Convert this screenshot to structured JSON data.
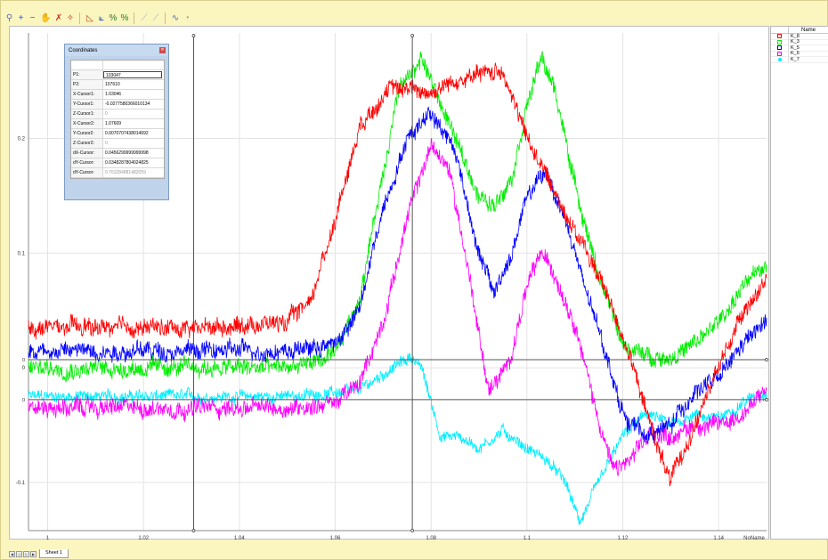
{
  "toolbar": {
    "buttons": [
      {
        "name": "select-tool-icon",
        "glyph": "⚲",
        "color": "#6070a0"
      },
      {
        "name": "add-cursor-icon",
        "glyph": "+",
        "color": "#2060c0"
      },
      {
        "name": "remove-cursor-icon",
        "glyph": "−",
        "color": "#2060c0"
      },
      {
        "name": "pan-icon",
        "glyph": "✋",
        "color": "#7080a0"
      },
      {
        "name": "delete-icon",
        "glyph": "✗",
        "color": "#d03020"
      },
      {
        "name": "snap-icon",
        "glyph": "✧",
        "color": "#c03020"
      },
      {
        "name": "sep",
        "glyph": ""
      },
      {
        "name": "chart-area-icon",
        "glyph": "◺",
        "color": "#d04020"
      },
      {
        "name": "chart-line-icon",
        "glyph": "⟀",
        "color": "#2050b0"
      },
      {
        "name": "percent-icon",
        "glyph": "%",
        "color": "#208020"
      },
      {
        "name": "percent-alt-icon",
        "glyph": "%",
        "color": "#208020"
      },
      {
        "name": "sep",
        "glyph": ""
      },
      {
        "name": "disabled-tool-icon",
        "glyph": "⟋",
        "color": "#aaaaaa"
      },
      {
        "name": "disabled-tool2-icon",
        "glyph": "⟋",
        "color": "#aaaaaa"
      },
      {
        "name": "sep",
        "glyph": ""
      },
      {
        "name": "curve-fit-icon",
        "glyph": "∿",
        "color": "#4070c0"
      },
      {
        "name": "settings-icon",
        "glyph": "◔",
        "color": "#999999"
      }
    ]
  },
  "legend": {
    "header": "Name",
    "items": [
      {
        "name": "K_8",
        "color": "#ff0000"
      },
      {
        "name": "K_3",
        "color": "#00ee00"
      },
      {
        "name": "K_5",
        "color": "#0000ff"
      },
      {
        "name": "K_6",
        "color": "#ff00ff"
      },
      {
        "name": "K_7",
        "color": "#00eeff"
      }
    ]
  },
  "coordinates": {
    "title": "Coordinates",
    "rows": [
      {
        "key": "",
        "value": ""
      },
      {
        "key": "P1:",
        "value": "103047"
      },
      {
        "key": "P2:",
        "value": "107610"
      },
      {
        "key": "X-Cursor1:",
        "value": "1.03046"
      },
      {
        "key": "Y-Cursor1:",
        "value": "-0.0277580366010134"
      },
      {
        "key": "Z-Cursor1:",
        "value": "0"
      },
      {
        "key": "X-Cursor2:",
        "value": "1.07609"
      },
      {
        "key": "Y-Cursor2:",
        "value": "0.0070707438014692"
      },
      {
        "key": "Z-Cursor2:",
        "value": "0"
      },
      {
        "key": "dX-Cursor:",
        "value": "0.0456299999999998"
      },
      {
        "key": "dY-Cursor:",
        "value": "0.0348287804024825"
      },
      {
        "key": "dY-Cursor:",
        "value": "0.763284881482059"
      }
    ]
  },
  "sheet_tab": "Sheet 1",
  "chart_data": {
    "type": "line",
    "xlabel": "NoName",
    "ylabel": "",
    "xlim": [
      0.996,
      1.15
    ],
    "ylim": [
      -0.142,
      0.292
    ],
    "x_ticks": [
      "1",
      "1.02",
      "1.04",
      "1.06",
      "1.08",
      "1.1",
      "1.12",
      "1.14"
    ],
    "y_ticks": [
      "0.2",
      "0.1",
      "0",
      "-0.1"
    ],
    "cursors_x": [
      1.03046,
      1.07609
    ],
    "cursors_y": [
      0.0070707438014692,
      -0.0277580366010134
    ],
    "cursor_labels": [
      "0",
      "0"
    ],
    "series": [
      {
        "name": "K_8",
        "color": "#ff0000",
        "noise": 0.006,
        "x": [
          0.996,
          1.01,
          1.03,
          1.05,
          1.055,
          1.06,
          1.065,
          1.07,
          1.075,
          1.08,
          1.085,
          1.09,
          1.095,
          1.1,
          1.105,
          1.11,
          1.115,
          1.12,
          1.125,
          1.13,
          1.135,
          1.14,
          1.145,
          1.15
        ],
        "y": [
          0.035,
          0.035,
          0.035,
          0.04,
          0.06,
          0.13,
          0.21,
          0.24,
          0.245,
          0.24,
          0.25,
          0.255,
          0.26,
          0.2,
          0.16,
          0.12,
          0.08,
          0.03,
          -0.04,
          -0.1,
          -0.05,
          0.0,
          0.05,
          0.075
        ]
      },
      {
        "name": "K_3",
        "color": "#00ee00",
        "noise": 0.006,
        "x": [
          0.996,
          1.01,
          1.03,
          1.05,
          1.06,
          1.065,
          1.07,
          1.073,
          1.078,
          1.082,
          1.086,
          1.09,
          1.093,
          1.097,
          1.1,
          1.103,
          1.106,
          1.11,
          1.115,
          1.12,
          1.125,
          1.13,
          1.135,
          1.14,
          1.145,
          1.15
        ],
        "y": [
          0.0,
          0.0,
          0.0,
          0.0,
          0.01,
          0.06,
          0.17,
          0.24,
          0.27,
          0.23,
          0.19,
          0.15,
          0.14,
          0.17,
          0.23,
          0.27,
          0.24,
          0.16,
          0.08,
          0.02,
          0.01,
          0.01,
          0.02,
          0.04,
          0.07,
          0.09
        ]
      },
      {
        "name": "K_5",
        "color": "#0000ff",
        "noise": 0.006,
        "x": [
          0.996,
          1.01,
          1.03,
          1.05,
          1.06,
          1.065,
          1.07,
          1.075,
          1.08,
          1.085,
          1.09,
          1.093,
          1.097,
          1.1,
          1.104,
          1.108,
          1.112,
          1.116,
          1.12,
          1.125,
          1.13,
          1.135,
          1.14,
          1.145,
          1.15
        ],
        "y": [
          0.015,
          0.015,
          0.015,
          0.015,
          0.02,
          0.05,
          0.14,
          0.2,
          0.225,
          0.19,
          0.1,
          0.065,
          0.1,
          0.15,
          0.17,
          0.13,
          0.07,
          0.02,
          -0.04,
          -0.06,
          -0.05,
          -0.02,
          -0.01,
          0.02,
          0.04
        ]
      },
      {
        "name": "K_6",
        "color": "#ff00ff",
        "noise": 0.006,
        "x": [
          0.996,
          1.01,
          1.03,
          1.05,
          1.06,
          1.065,
          1.07,
          1.075,
          1.08,
          1.084,
          1.088,
          1.092,
          1.096,
          1.1,
          1.103,
          1.106,
          1.11,
          1.114,
          1.118,
          1.122,
          1.126,
          1.13,
          1.135,
          1.14,
          1.145,
          1.15
        ],
        "y": [
          -0.035,
          -0.035,
          -0.035,
          -0.035,
          -0.03,
          -0.015,
          0.04,
          0.13,
          0.195,
          0.17,
          0.08,
          -0.02,
          0.0,
          0.07,
          0.1,
          0.08,
          0.04,
          -0.03,
          -0.09,
          -0.08,
          -0.055,
          -0.06,
          -0.05,
          -0.05,
          -0.04,
          -0.02
        ]
      },
      {
        "name": "K_7",
        "color": "#00eeff",
        "noise": 0.004,
        "x": [
          0.996,
          1.01,
          1.03,
          1.05,
          1.065,
          1.072,
          1.076,
          1.078,
          1.082,
          1.086,
          1.09,
          1.095,
          1.1,
          1.104,
          1.108,
          1.111,
          1.115,
          1.12,
          1.125,
          1.13,
          1.135,
          1.14,
          1.145,
          1.15
        ],
        "y": [
          -0.025,
          -0.025,
          -0.025,
          -0.025,
          -0.02,
          0.0,
          0.01,
          0.0,
          -0.06,
          -0.06,
          -0.07,
          -0.055,
          -0.07,
          -0.08,
          -0.1,
          -0.135,
          -0.1,
          -0.06,
          -0.04,
          -0.05,
          -0.04,
          -0.045,
          -0.03,
          -0.02
        ]
      }
    ]
  }
}
